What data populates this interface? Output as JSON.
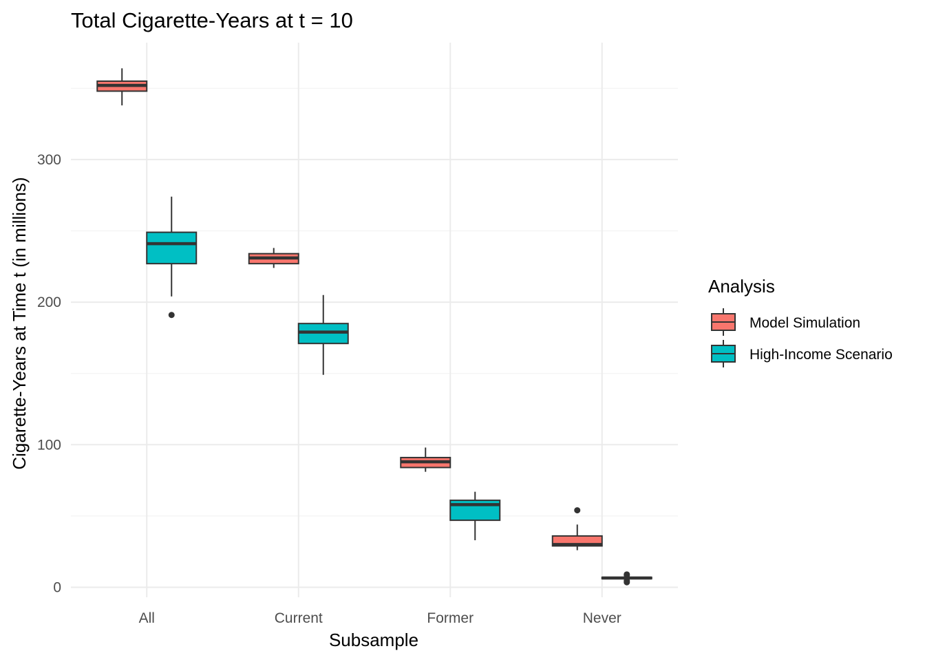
{
  "chart_data": {
    "type": "boxplot",
    "title": "Total Cigarette-Years at t = 10",
    "xlabel": "Subsample",
    "ylabel": "Cigarette-Years at Time t (in millions)",
    "categories": [
      "All",
      "Current",
      "Former",
      "Never"
    ],
    "ylim": [
      -7,
      382
    ],
    "yticks": [
      0,
      100,
      200,
      300
    ],
    "grid": true,
    "legend": {
      "title": "Analysis",
      "position": "right"
    },
    "series": [
      {
        "name": "Model Simulation",
        "color": "#F8766D",
        "boxes": [
          {
            "category": "All",
            "min": 338,
            "q1": 348,
            "median": 352,
            "q3": 355,
            "max": 364,
            "outliers": []
          },
          {
            "category": "Current",
            "min": 224,
            "q1": 227,
            "median": 231,
            "q3": 234,
            "max": 238,
            "outliers": []
          },
          {
            "category": "Former",
            "min": 81,
            "q1": 84,
            "median": 88,
            "q3": 91,
            "max": 98,
            "outliers": []
          },
          {
            "category": "Never",
            "min": 26,
            "q1": 29,
            "median": 30,
            "q3": 36,
            "max": 44,
            "outliers": [
              54
            ]
          }
        ]
      },
      {
        "name": "High-Income Scenario",
        "color": "#00BFC4",
        "boxes": [
          {
            "category": "All",
            "min": 204,
            "q1": 227,
            "median": 241,
            "q3": 249,
            "max": 274,
            "outliers": [
              191
            ]
          },
          {
            "category": "Current",
            "min": 149,
            "q1": 171,
            "median": 179,
            "q3": 185,
            "max": 205,
            "outliers": []
          },
          {
            "category": "Former",
            "min": 33,
            "q1": 47,
            "median": 58,
            "q3": 61,
            "max": 67,
            "outliers": []
          },
          {
            "category": "Never",
            "min": 5,
            "q1": 6,
            "median": 6.5,
            "q3": 7,
            "max": 8,
            "outliers": [
              3.5,
              4.5,
              8.5,
              9
            ]
          }
        ]
      }
    ]
  }
}
